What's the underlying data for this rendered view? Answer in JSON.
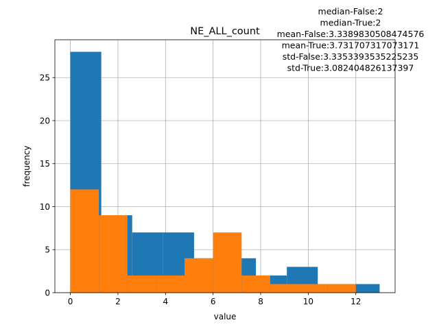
{
  "chart_data": {
    "type": "histogram",
    "title": "NE_ALL_count",
    "xlabel": "value",
    "ylabel": "frequency",
    "xlim": [
      -0.65,
      13.65
    ],
    "ylim": [
      0,
      29.4
    ],
    "xticks": [
      0,
      2,
      4,
      6,
      8,
      10,
      12
    ],
    "yticks": [
      0,
      5,
      10,
      15,
      20,
      25
    ],
    "grid": true,
    "annotation_lines": [
      "median-False:2",
      "median-True:2",
      "mean-False:3.3389830508474576",
      "mean-True:3.731707317073171",
      "std-False:3.3353393535225235",
      "std-True:3.082404826137397"
    ],
    "series": [
      {
        "color": "#1f77b4",
        "bin_edges": [
          0,
          1.3,
          2.6,
          3.9,
          5.2,
          6.5,
          7.8,
          9.1,
          10.4,
          11.7,
          13
        ],
        "counts": [
          28,
          9,
          7,
          7,
          4,
          4,
          2,
          3,
          1,
          1
        ]
      },
      {
        "color": "#ff7f0e",
        "bin_edges": [
          0,
          1.2,
          2.4,
          3.6,
          4.8,
          6.0,
          7.2,
          8.4,
          9.6,
          10.8,
          12
        ],
        "counts": [
          12,
          9,
          2,
          2,
          4,
          7,
          2,
          1,
          1,
          1
        ]
      }
    ]
  }
}
